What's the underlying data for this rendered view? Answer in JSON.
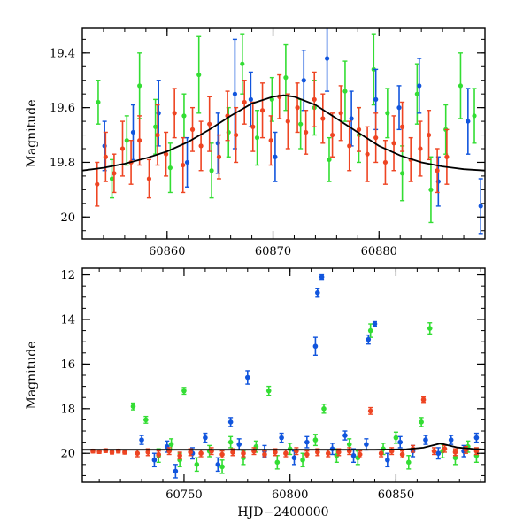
{
  "chart_data": [
    {
      "type": "scatter",
      "panel": "top",
      "title": "",
      "xlabel": "",
      "ylabel": "Magnitude",
      "xlim": [
        60852,
        60890
      ],
      "ylim": [
        20.08,
        19.31
      ],
      "y_inverted": true,
      "xticks": [
        60860,
        60870,
        60880
      ],
      "xtick_labels": [
        "60860",
        "60870",
        "60880"
      ],
      "yticks": [
        19.4,
        19.6,
        19.8,
        20.0
      ],
      "ytick_labels": [
        "19.4",
        "19.6",
        "19.8",
        "20"
      ],
      "grid": false,
      "legend": "none",
      "model_curve": {
        "color": "#000000",
        "x": [
          60852,
          60854,
          60856,
          60858,
          60860,
          60862,
          60864,
          60866,
          60868,
          60870,
          60871,
          60872,
          60874,
          60876,
          60878,
          60880,
          60882,
          60884,
          60886,
          60888,
          60890
        ],
        "y": [
          19.83,
          19.82,
          19.805,
          19.785,
          19.76,
          19.725,
          19.68,
          19.63,
          19.585,
          19.56,
          19.555,
          19.56,
          19.59,
          19.64,
          19.69,
          19.74,
          19.775,
          19.8,
          19.815,
          19.825,
          19.83
        ]
      },
      "series": [
        {
          "color": "#33dd33",
          "x": [
            60853.5,
            60854.8,
            60856.2,
            60857.4,
            60858.9,
            60860.3,
            60861.6,
            60863.0,
            60864.2,
            60865.8,
            60867.1,
            60868.5,
            60869.9,
            60871.2,
            60872.6,
            60873.9,
            60875.3,
            60876.8,
            60878.1,
            60879.5,
            60880.8,
            60882.2,
            60883.6,
            60884.9,
            60886.3,
            60887.7,
            60889.0
          ],
          "y": [
            19.58,
            19.86,
            19.72,
            19.52,
            19.67,
            19.82,
            19.63,
            19.48,
            19.83,
            19.69,
            19.44,
            19.71,
            19.57,
            19.49,
            19.66,
            19.6,
            19.79,
            19.54,
            19.7,
            19.46,
            19.62,
            19.84,
            19.55,
            19.9,
            19.68,
            19.52,
            19.63
          ],
          "err": [
            0.08,
            0.07,
            0.09,
            0.12,
            0.1,
            0.09,
            0.08,
            0.14,
            0.1,
            0.09,
            0.11,
            0.1,
            0.08,
            0.12,
            0.09,
            0.1,
            0.08,
            0.11,
            0.1,
            0.13,
            0.09,
            0.1,
            0.11,
            0.12,
            0.09,
            0.12,
            0.1
          ]
        },
        {
          "color": "#1155dd",
          "x": [
            60854.1,
            60856.8,
            60859.2,
            60861.9,
            60864.8,
            60866.4,
            60867.9,
            60870.2,
            60872.9,
            60875.1,
            60877.4,
            60879.7,
            60881.9,
            60883.8,
            60885.6,
            60888.4,
            60889.6
          ],
          "y": [
            19.74,
            19.69,
            19.62,
            19.8,
            19.73,
            19.55,
            19.57,
            19.78,
            19.5,
            19.42,
            19.64,
            19.57,
            19.6,
            19.52,
            19.87,
            19.65,
            19.96
          ],
          "err": [
            0.09,
            0.1,
            0.12,
            0.09,
            0.11,
            0.2,
            0.1,
            0.09,
            0.11,
            0.12,
            0.1,
            0.11,
            0.08,
            0.1,
            0.09,
            0.12,
            0.1
          ]
        },
        {
          "color": "#ee4422",
          "x": [
            60853.4,
            60854.2,
            60855.0,
            60855.8,
            60856.6,
            60857.4,
            60858.3,
            60859.1,
            60859.9,
            60860.7,
            60861.5,
            60862.4,
            60863.2,
            60864.0,
            60864.9,
            60865.7,
            60866.5,
            60867.3,
            60868.1,
            60869.0,
            60869.8,
            60870.6,
            60871.4,
            60872.3,
            60873.1,
            60873.9,
            60874.7,
            60875.6,
            60876.4,
            60877.2,
            60878.1,
            60878.9,
            60879.7,
            60880.6,
            60881.4,
            60882.2,
            60883.0,
            60883.9,
            60884.7,
            60885.5,
            60886.4
          ],
          "y": [
            19.88,
            19.78,
            19.84,
            19.75,
            19.8,
            19.72,
            19.86,
            19.7,
            19.77,
            19.62,
            19.81,
            19.68,
            19.74,
            19.66,
            19.78,
            19.63,
            19.7,
            19.58,
            19.67,
            19.61,
            19.72,
            19.56,
            19.65,
            19.6,
            19.69,
            19.57,
            19.64,
            19.7,
            19.62,
            19.74,
            19.68,
            19.77,
            19.71,
            19.8,
            19.73,
            19.67,
            19.79,
            19.75,
            19.7,
            19.83,
            19.78
          ],
          "err": [
            0.08,
            0.09,
            0.07,
            0.1,
            0.08,
            0.09,
            0.07,
            0.11,
            0.08,
            0.09,
            0.1,
            0.08,
            0.09,
            0.1,
            0.08,
            0.09,
            0.1,
            0.08,
            0.09,
            0.1,
            0.09,
            0.08,
            0.1,
            0.09,
            0.08,
            0.1,
            0.09,
            0.08,
            0.1,
            0.09,
            0.08,
            0.1,
            0.09,
            0.08,
            0.1,
            0.09,
            0.08,
            0.1,
            0.09,
            0.08,
            0.1
          ]
        }
      ]
    },
    {
      "type": "scatter",
      "panel": "bottom",
      "title": "",
      "xlabel": "HJD−2400000",
      "ylabel": "Magnitude",
      "xlim": [
        60702,
        60892
      ],
      "ylim": [
        21.3,
        11.7
      ],
      "y_inverted": true,
      "xticks": [
        60750,
        60800,
        60850
      ],
      "xtick_labels": [
        "60750",
        "60800",
        "60850"
      ],
      "yticks": [
        12,
        14,
        16,
        18,
        20
      ],
      "ytick_labels": [
        "12",
        "14",
        "16",
        "18",
        "20"
      ],
      "grid": false,
      "legend": "none",
      "model_curve": {
        "color": "#000000",
        "x": [
          60702,
          60840,
          60855,
          60863,
          60871,
          60879,
          60887,
          60892
        ],
        "y": [
          19.84,
          19.84,
          19.82,
          19.75,
          19.56,
          19.74,
          19.81,
          19.83
        ]
      },
      "series": [
        {
          "color": "#33dd33",
          "x": [
            60726,
            60732,
            60738,
            60744,
            60748,
            60750,
            60756,
            60762,
            60768,
            60772,
            60778,
            60784,
            60790,
            60794,
            60800,
            60806,
            60812,
            60816,
            60822,
            60828,
            60832,
            60838,
            60844,
            60850,
            60856,
            60862,
            60866,
            60872,
            60878,
            60884,
            60888
          ],
          "y": [
            17.9,
            18.5,
            20.1,
            19.6,
            20.3,
            17.2,
            20.5,
            19.9,
            20.6,
            19.5,
            20.2,
            19.7,
            17.2,
            20.4,
            19.8,
            20.3,
            19.4,
            18.0,
            20.1,
            19.6,
            20.2,
            14.5,
            19.8,
            19.3,
            20.4,
            18.6,
            14.4,
            19.9,
            20.2,
            19.7,
            20.1
          ],
          "err": [
            0.15,
            0.15,
            0.3,
            0.25,
            0.3,
            0.15,
            0.3,
            0.25,
            0.3,
            0.25,
            0.3,
            0.25,
            0.2,
            0.3,
            0.25,
            0.3,
            0.25,
            0.2,
            0.3,
            0.25,
            0.3,
            0.3,
            0.25,
            0.25,
            0.3,
            0.2,
            0.25,
            0.3,
            0.3,
            0.25,
            0.3
          ]
        },
        {
          "color": "#1155dd",
          "x": [
            60730,
            60736,
            60742,
            60746,
            60754,
            60760,
            60766,
            60772,
            60776,
            60780,
            60788,
            60796,
            60802,
            60808,
            60812,
            60813,
            60815,
            60820,
            60826,
            60830,
            60836,
            60837,
            60840,
            60846,
            60852,
            60858,
            60864,
            60870,
            60876,
            60882,
            60888
          ],
          "y": [
            19.4,
            20.3,
            19.7,
            20.8,
            20.0,
            19.3,
            20.5,
            18.6,
            19.6,
            16.6,
            19.9,
            19.3,
            20.2,
            19.5,
            15.2,
            12.8,
            12.1,
            19.8,
            19.2,
            20.1,
            19.6,
            14.9,
            14.2,
            20.3,
            19.5,
            19.9,
            19.4,
            20.0,
            19.4,
            19.9,
            19.3
          ],
          "err": [
            0.2,
            0.3,
            0.25,
            0.3,
            0.25,
            0.2,
            0.3,
            0.2,
            0.25,
            0.3,
            0.25,
            0.2,
            0.3,
            0.25,
            0.4,
            0.2,
            0.1,
            0.25,
            0.2,
            0.3,
            0.25,
            0.2,
            0.1,
            0.3,
            0.25,
            0.25,
            0.2,
            0.25,
            0.2,
            0.25,
            0.2
          ]
        },
        {
          "color": "#ee4422",
          "x": [
            60707,
            60710,
            60713,
            60716,
            60719,
            60722,
            60728,
            60733,
            60738,
            60743,
            60748,
            60753,
            60758,
            60763,
            60768,
            60773,
            60778,
            60783,
            60788,
            60793,
            60798,
            60803,
            60808,
            60813,
            60818,
            60823,
            60828,
            60833,
            60838,
            60843,
            60848,
            60853,
            60858,
            60863,
            60868,
            60873,
            60878,
            60883,
            60888
          ],
          "y": [
            19.9,
            19.92,
            19.88,
            19.95,
            19.9,
            19.95,
            20.0,
            19.95,
            20.05,
            19.9,
            20.1,
            19.95,
            20.0,
            19.9,
            20.05,
            19.95,
            20.0,
            19.9,
            20.05,
            19.95,
            20.0,
            19.9,
            20.05,
            19.95,
            20.0,
            19.95,
            19.9,
            20.05,
            18.1,
            20.0,
            19.9,
            20.05,
            19.8,
            17.6,
            19.9,
            19.8,
            19.95,
            19.85,
            19.9
          ],
          "err": [
            0.08,
            0.08,
            0.08,
            0.08,
            0.08,
            0.08,
            0.15,
            0.15,
            0.15,
            0.15,
            0.15,
            0.15,
            0.15,
            0.15,
            0.15,
            0.15,
            0.15,
            0.15,
            0.15,
            0.15,
            0.15,
            0.15,
            0.15,
            0.15,
            0.15,
            0.15,
            0.15,
            0.15,
            0.15,
            0.15,
            0.15,
            0.15,
            0.15,
            0.12,
            0.15,
            0.15,
            0.15,
            0.15,
            0.15
          ]
        }
      ]
    }
  ]
}
